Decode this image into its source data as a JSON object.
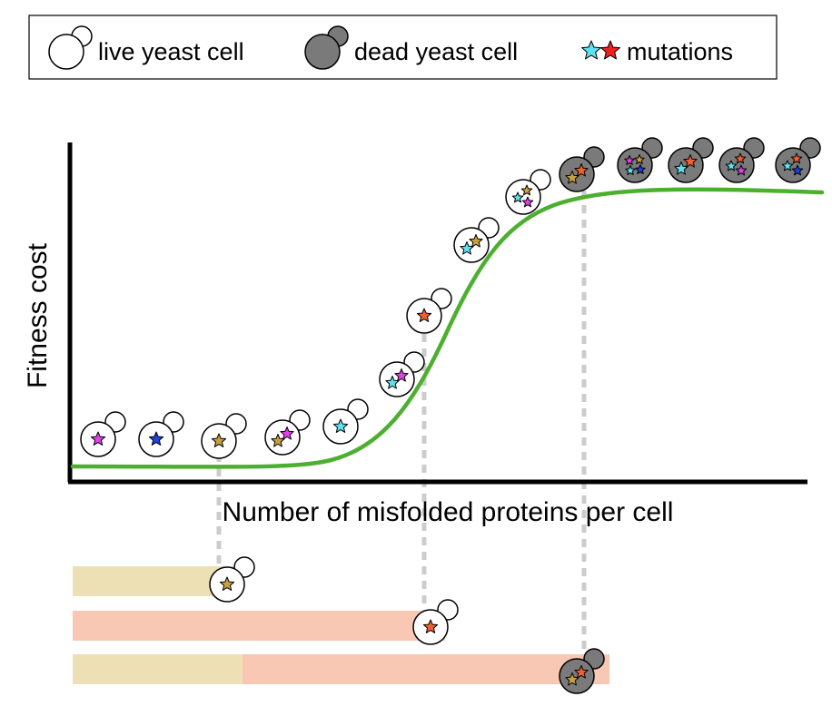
{
  "legend": {
    "live_label": "live yeast cell",
    "dead_label": "dead yeast cell",
    "mutations_label": "mutations"
  },
  "axes": {
    "ylabel": "Fitness cost",
    "xlabel": "Number of misfolded proteins per cell"
  },
  "colors": {
    "curve": "#4caf2f",
    "dead_cell": "#7a7a7a",
    "tan_bar": "#ede0b4",
    "salmon_bar": "#f8c8b4",
    "dashed": "#cccccc",
    "star_magenta": "#e040e8",
    "star_blue": "#2040e0",
    "star_gold": "#c8a040",
    "star_cyan": "#60e0f0",
    "star_orange": "#f06030",
    "star_red": "#ee2020"
  },
  "cells": [
    {
      "state": "live",
      "stars": [
        "star_magenta"
      ]
    },
    {
      "state": "live",
      "stars": [
        "star_blue"
      ]
    },
    {
      "state": "live",
      "stars": [
        "star_gold"
      ]
    },
    {
      "state": "live",
      "stars": [
        "star_gold",
        "star_magenta"
      ]
    },
    {
      "state": "live",
      "stars": [
        "star_cyan"
      ]
    },
    {
      "state": "live",
      "stars": [
        "star_cyan",
        "star_magenta"
      ]
    },
    {
      "state": "live",
      "stars": [
        "star_orange"
      ]
    },
    {
      "state": "live",
      "stars": [
        "star_cyan",
        "star_gold"
      ]
    },
    {
      "state": "live",
      "stars": [
        "star_cyan",
        "star_gold",
        "star_magenta"
      ]
    },
    {
      "state": "dead",
      "stars": [
        "star_gold",
        "star_orange"
      ]
    },
    {
      "state": "dead",
      "stars": [
        "star_magenta",
        "star_gold",
        "star_cyan",
        "star_blue"
      ]
    },
    {
      "state": "dead",
      "stars": [
        "star_cyan",
        "star_orange"
      ]
    },
    {
      "state": "dead",
      "stars": [
        "star_cyan",
        "star_orange",
        "star_magenta"
      ]
    },
    {
      "state": "dead",
      "stars": [
        "star_cyan",
        "star_orange",
        "star_blue"
      ]
    }
  ],
  "bars": [
    {
      "segments": [
        "tan_bar"
      ],
      "cell": {
        "state": "live",
        "stars": [
          "star_gold"
        ]
      }
    },
    {
      "segments": [
        "salmon_bar"
      ],
      "cell": {
        "state": "live",
        "stars": [
          "star_orange"
        ]
      }
    },
    {
      "segments": [
        "tan_bar",
        "salmon_bar"
      ],
      "cell": {
        "state": "dead",
        "stars": [
          "star_gold",
          "star_orange"
        ]
      }
    }
  ]
}
